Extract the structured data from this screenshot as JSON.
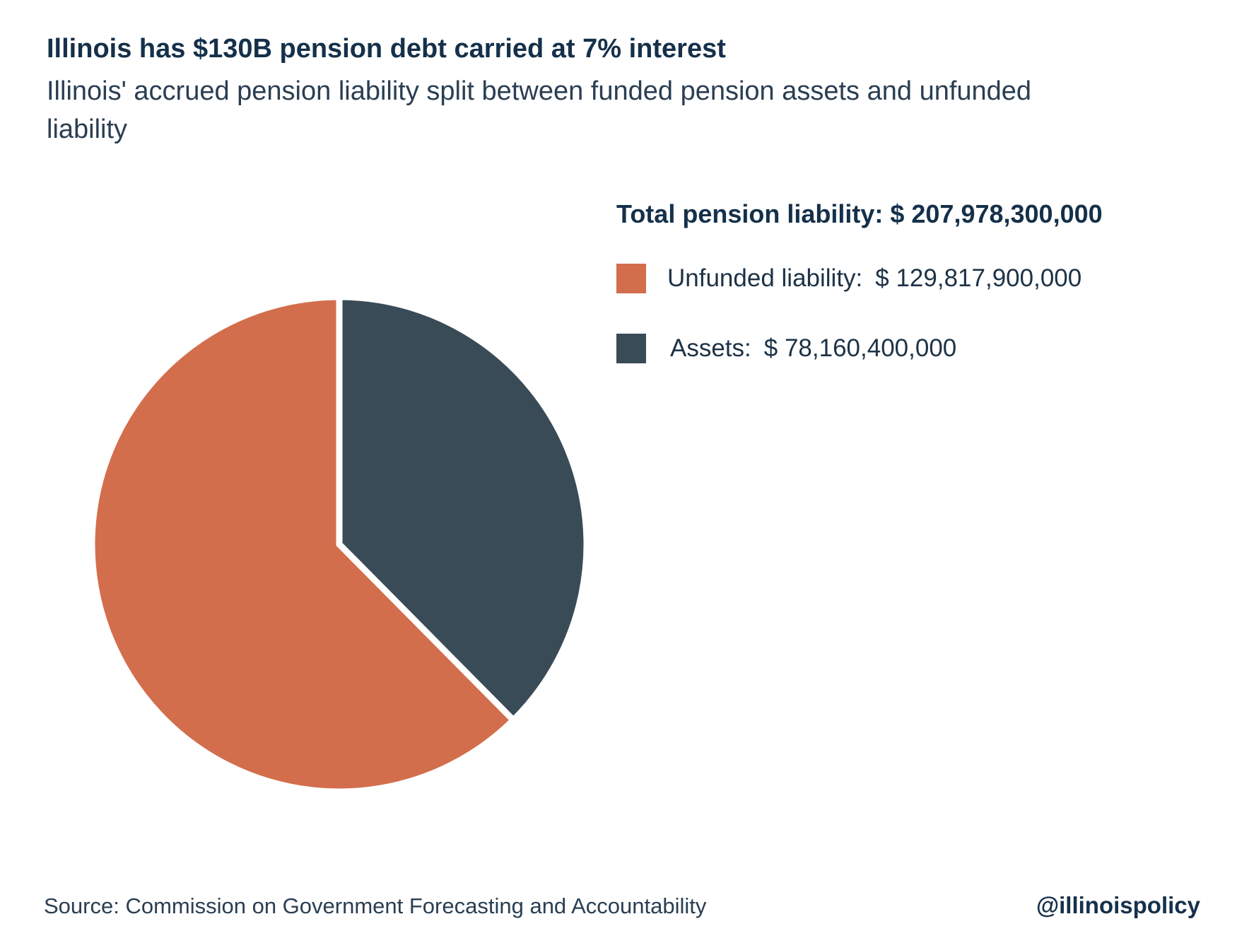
{
  "title": "Illinois has $130B pension debt carried at 7% interest",
  "subtitle": "Illinois' accrued pension liability split between funded pension assets and unfunded liability",
  "source": "Source: Commission on Government Forecasting and Accountability",
  "handle": "@illinoispolicy",
  "chart_data": {
    "type": "pie",
    "legend_position": "right",
    "total_label": "Total pension liability: $ 207,978,300,000",
    "total_value": 207978300000,
    "slices": [
      {
        "name": "Unfunded liability",
        "label": "Unfunded liability:",
        "value": 129817900000,
        "value_label": "$ 129,817,900,000",
        "color": "#d36e4d"
      },
      {
        "name": "Assets",
        "label": "Assets:",
        "value": 78160400000,
        "value_label": "$ 78,160,400,000",
        "color": "#394b57"
      }
    ]
  }
}
